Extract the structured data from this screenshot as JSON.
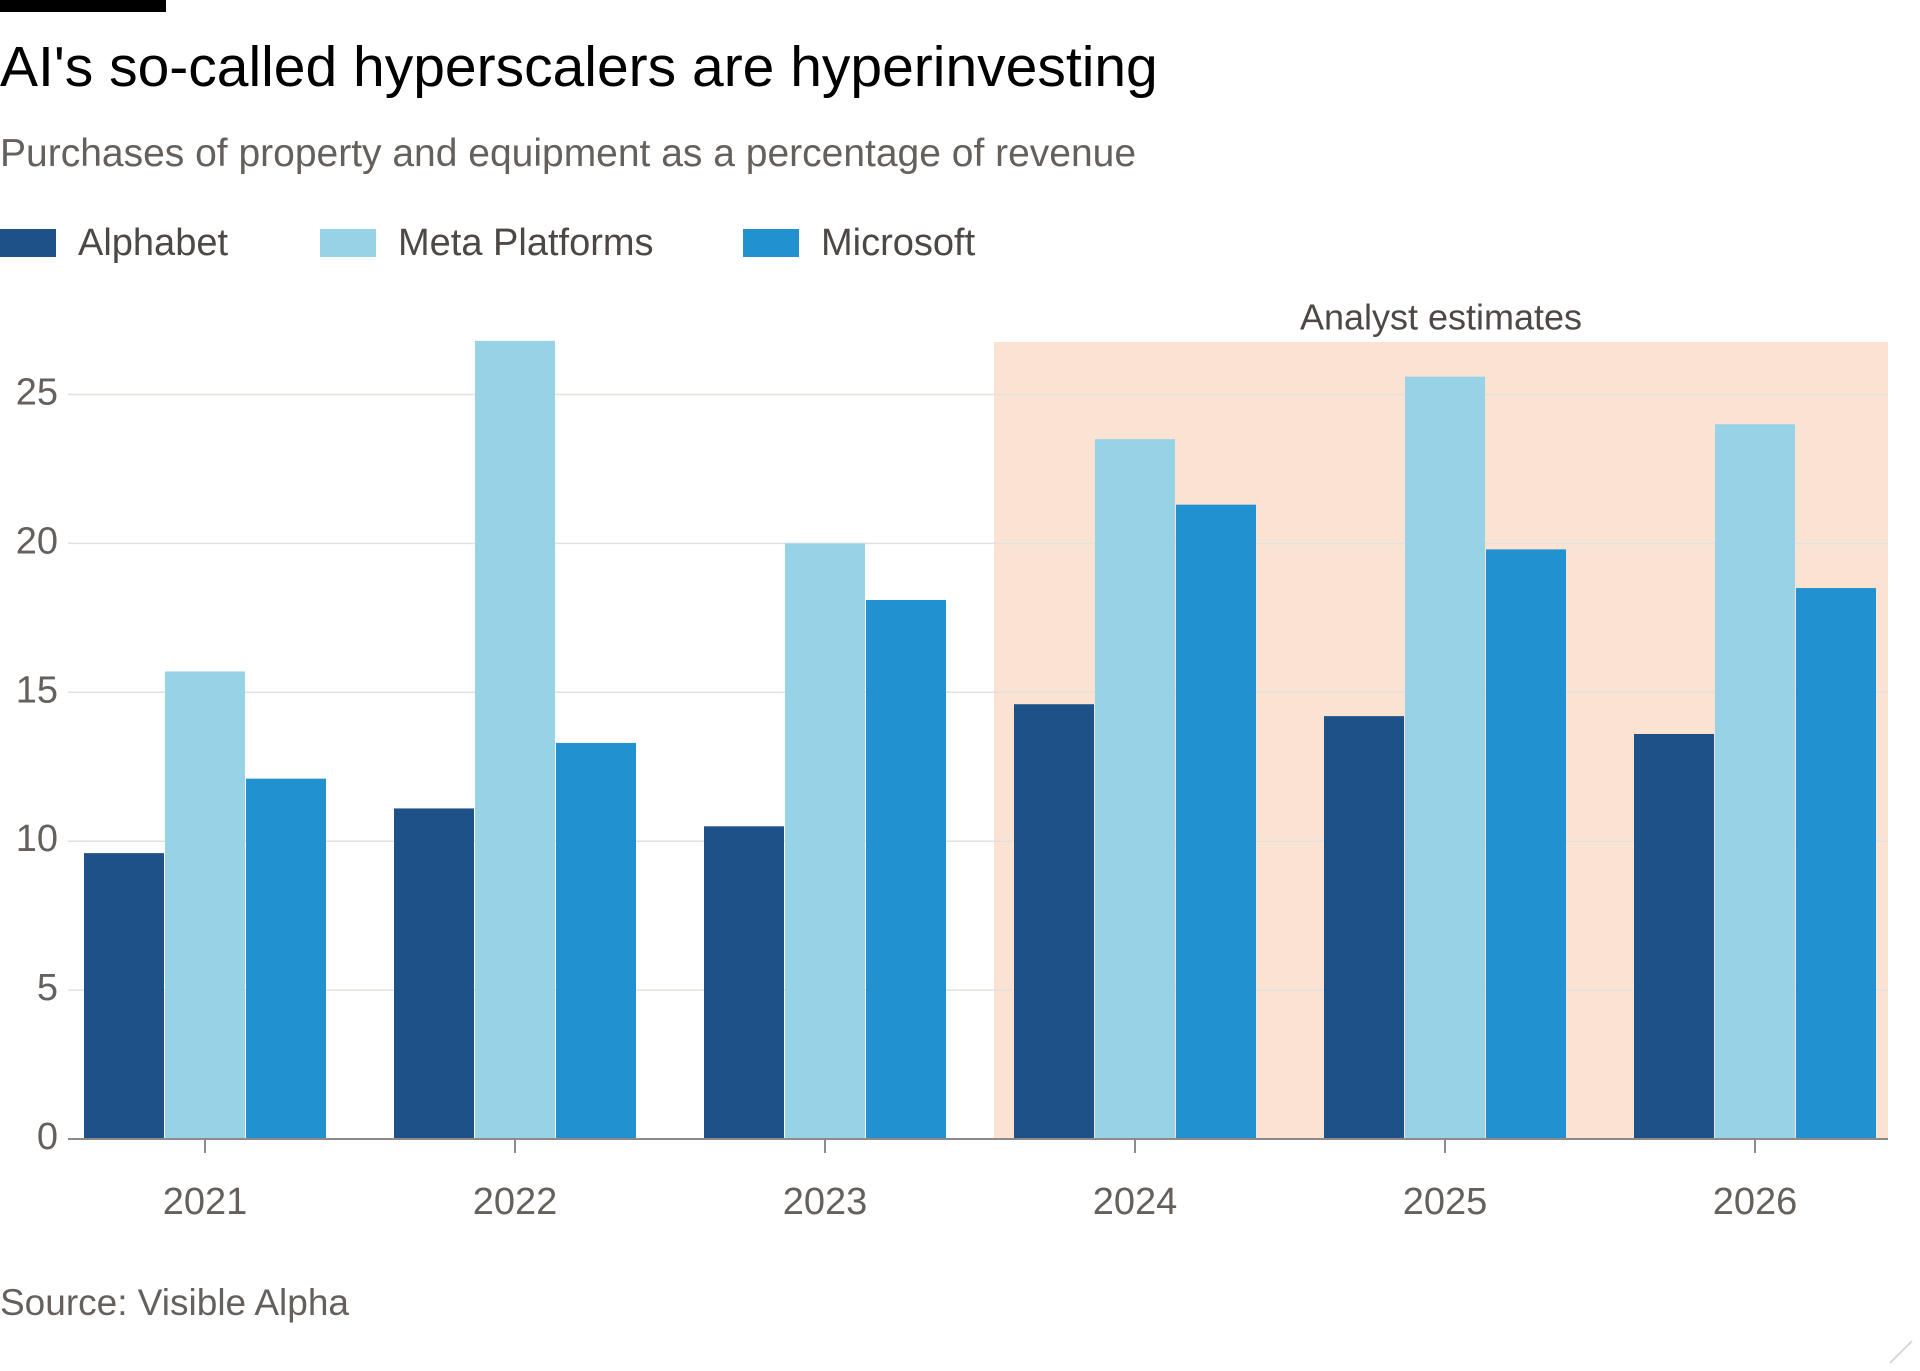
{
  "header": {
    "title": "AI's so-called hyperscalers are hyperinvesting",
    "subtitle": "Purchases of property and equipment as a percentage of revenue"
  },
  "footer": {
    "source": "Source: Visible Alpha"
  },
  "colors": {
    "alphabet": "#1f5189",
    "meta": "#96d3e6",
    "microsoft": "#2191cf",
    "estimate_shade": "#fbe3d4",
    "grid": "#e6e0dc",
    "axis_text": "#66605c"
  },
  "chart_data": {
    "type": "bar",
    "categories": [
      "2021",
      "2022",
      "2023",
      "2024",
      "2025",
      "2026"
    ],
    "series": [
      {
        "name": "Alphabet",
        "values": [
          9.6,
          11.1,
          10.5,
          14.6,
          14.2,
          13.6
        ]
      },
      {
        "name": "Meta Platforms",
        "values": [
          15.7,
          26.8,
          20.0,
          23.5,
          25.6,
          24.0
        ]
      },
      {
        "name": "Microsoft",
        "values": [
          12.1,
          13.3,
          18.1,
          21.3,
          19.8,
          18.5
        ]
      }
    ],
    "yticks": [
      0,
      5,
      10,
      15,
      20,
      25
    ],
    "ylim": [
      0,
      27
    ],
    "grid": true,
    "legend_position": "top-left",
    "shaded_region": {
      "label": "Analyst estimates",
      "from_category": "2024",
      "to_category": "2026"
    }
  }
}
